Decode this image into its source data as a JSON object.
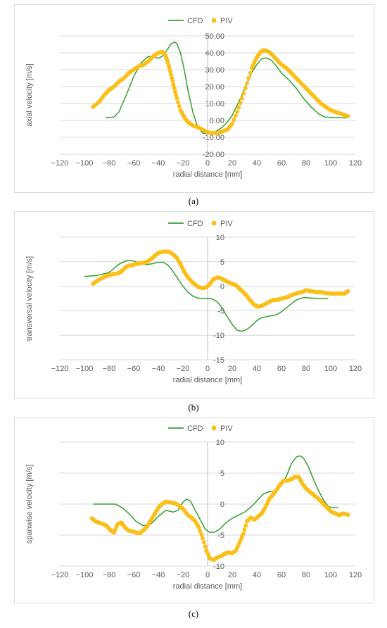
{
  "captions": [
    "(a)",
    "(b)",
    "(c)"
  ],
  "chart_data": [
    {
      "type": "line",
      "legend": [
        "CFD",
        "PIV"
      ],
      "legend_position": "top",
      "xlabel": "radial distance [mm]",
      "ylabel": "axial velocity [m/s]",
      "xlim": [
        -120,
        120
      ],
      "ylim": [
        -20,
        50
      ],
      "xticks": [
        "-120",
        "-100",
        "-80",
        "-60",
        "-40",
        "-20",
        "0",
        "20",
        "40",
        "60",
        "80",
        "100",
        "120"
      ],
      "yticks": [
        "-20.00",
        "-10.00",
        "0.00",
        "10.00",
        "20.00",
        "30.00",
        "40.00",
        "50.00"
      ],
      "grid": true,
      "colors": {
        "CFD": "#33a02c",
        "PIV": "#fbbf1a"
      },
      "series": [
        {
          "name": "CFD",
          "style": "line",
          "x": [
            -83,
            -76,
            -72,
            -66,
            -60,
            -54,
            -49,
            -45,
            -42,
            -39,
            -36,
            -33,
            -30,
            -27,
            -25,
            -22,
            -19,
            -16,
            -12,
            -8,
            -4,
            0,
            4,
            8,
            12,
            16,
            20,
            24,
            28,
            32,
            36,
            40,
            44,
            48,
            52,
            56,
            60,
            66,
            72,
            78,
            84,
            90,
            95,
            100,
            108,
            113
          ],
          "y": [
            1.5,
            2,
            5,
            15,
            26,
            34,
            37.5,
            38,
            37,
            37,
            38.5,
            41.5,
            45,
            46.5,
            45.5,
            40,
            30,
            18,
            5,
            -4,
            -7.5,
            -8,
            -7.5,
            -6,
            -4,
            -1,
            3,
            9,
            15,
            22,
            28.5,
            33,
            36.5,
            37,
            35.5,
            32,
            28,
            24,
            19,
            13,
            8,
            4,
            2,
            1.8,
            1.6,
            1.5
          ]
        },
        {
          "name": "PIV",
          "style": "dots",
          "x": [
            -93,
            -88,
            -84,
            -80,
            -76,
            -72,
            -68,
            -64,
            -60,
            -56,
            -52,
            -48,
            -44,
            -40,
            -37,
            -35,
            -33,
            -31,
            -29,
            -27,
            -25,
            -22,
            -19,
            -16,
            -12,
            -8,
            -4,
            0,
            4,
            8,
            12,
            16,
            20,
            24,
            28,
            32,
            36,
            39,
            42,
            44,
            46,
            48,
            50,
            53,
            56,
            60,
            64,
            68,
            72,
            76,
            80,
            84,
            88,
            92,
            96,
            100,
            104,
            108,
            112,
            114
          ],
          "y": [
            8,
            11,
            15,
            18,
            20,
            23,
            25,
            28,
            30,
            32,
            33,
            35,
            38,
            40,
            40.5,
            39.5,
            36,
            31,
            25,
            19,
            13,
            6,
            2,
            -1,
            -3,
            -4,
            -5.5,
            -7,
            -7.5,
            -7.5,
            -6.5,
            -5.5,
            -2,
            5,
            13,
            22,
            31,
            36,
            39.5,
            41,
            41.5,
            41,
            40.5,
            38.5,
            36,
            33,
            31,
            28,
            25,
            22,
            19,
            16,
            13,
            10,
            8,
            6,
            5,
            4,
            3,
            2.5
          ]
        }
      ]
    },
    {
      "type": "line",
      "legend": [
        "CFD",
        "PIV"
      ],
      "legend_position": "top",
      "xlabel": "radial distance [mm]",
      "ylabel": "transversal velocity [m/s]",
      "xlim": [
        -120,
        120
      ],
      "ylim": [
        -15,
        10
      ],
      "xticks": [
        "-120",
        "-100",
        "-80",
        "-60",
        "-40",
        "-20",
        "0",
        "20",
        "40",
        "60",
        "80",
        "100",
        "120"
      ],
      "yticks": [
        "-15",
        "-10",
        "-5",
        "0",
        "5",
        "10"
      ],
      "grid": true,
      "colors": {
        "CFD": "#33a02c",
        "PIV": "#fbbf1a"
      },
      "series": [
        {
          "name": "CFD",
          "style": "line",
          "x": [
            -100,
            -90,
            -80,
            -72,
            -66,
            -62,
            -58,
            -54,
            -50,
            -45,
            -40,
            -36,
            -32,
            -28,
            -24,
            -20,
            -16,
            -12,
            -8,
            -4,
            0,
            4,
            8,
            12,
            16,
            20,
            24,
            28,
            32,
            36,
            40,
            44,
            48,
            52,
            56,
            60,
            66,
            72,
            78,
            84,
            90,
            98
          ],
          "y": [
            2,
            2.2,
            2.8,
            4.5,
            5.2,
            5.3,
            5,
            4.7,
            4.4,
            4.6,
            4.9,
            4.9,
            4.3,
            3,
            1.5,
            0,
            -1.2,
            -2,
            -2.4,
            -2.5,
            -2.5,
            -2.6,
            -3.2,
            -4.5,
            -6.2,
            -7.8,
            -9,
            -9.2,
            -8.8,
            -8,
            -7,
            -6.4,
            -6.2,
            -6,
            -5.8,
            -5.2,
            -4,
            -2.8,
            -2.3,
            -2.4,
            -2.5,
            -2.5
          ]
        },
        {
          "name": "PIV",
          "style": "dots",
          "x": [
            -93,
            -89,
            -85,
            -81,
            -77,
            -73,
            -70,
            -67,
            -64,
            -61,
            -58,
            -55,
            -52,
            -49,
            -46,
            -43,
            -40,
            -37,
            -34,
            -31,
            -28,
            -25,
            -22,
            -19,
            -16,
            -13,
            -10,
            -7,
            -4,
            -1,
            2,
            5,
            8,
            11,
            14,
            17,
            20,
            23,
            26,
            29,
            32,
            35,
            38,
            41,
            44,
            47,
            50,
            53,
            56,
            59,
            62,
            65,
            68,
            71,
            74,
            77,
            80,
            84,
            88,
            92,
            96,
            100,
            104,
            108,
            111,
            114
          ],
          "y": [
            0.5,
            1.2,
            1.8,
            2.2,
            2.5,
            2.6,
            3,
            3.8,
            4.2,
            4.3,
            4.6,
            4.7,
            4.8,
            5,
            5.5,
            6.2,
            6.8,
            7,
            7.1,
            7,
            6.5,
            5.8,
            4.5,
            3,
            1.8,
            1,
            0.3,
            -0.2,
            -0.4,
            -0.2,
            0.5,
            1.5,
            1.8,
            1.6,
            1.2,
            0.8,
            0.5,
            0.2,
            -0.5,
            -1.2,
            -2,
            -3,
            -3.8,
            -4.2,
            -4,
            -3.6,
            -3.2,
            -2.8,
            -2.8,
            -2.6,
            -2.4,
            -2.2,
            -1.8,
            -1.6,
            -1.3,
            -1.2,
            -0.8,
            -1,
            -1.2,
            -1.2,
            -1.4,
            -1.5,
            -1.5,
            -1.5,
            -1.5,
            -1
          ]
        }
      ]
    },
    {
      "type": "line",
      "legend": [
        "CFD",
        "PIV"
      ],
      "legend_position": "top",
      "xlabel": "radial distance [mm]",
      "ylabel": "spanwise velocity [m/s]",
      "xlim": [
        -120,
        120
      ],
      "ylim": [
        -10,
        10
      ],
      "xticks": [
        "-120",
        "-100",
        "-80",
        "-60",
        "-40",
        "-20",
        "0",
        "20",
        "40",
        "60",
        "80",
        "100",
        "120"
      ],
      "yticks": [
        "-10",
        "-5",
        "0",
        "5",
        "10"
      ],
      "grid": true,
      "colors": {
        "CFD": "#33a02c",
        "PIV": "#fbbf1a"
      },
      "series": [
        {
          "name": "CFD",
          "style": "line",
          "x": [
            -93,
            -84,
            -75,
            -70,
            -64,
            -58,
            -52,
            -46,
            -40,
            -34,
            -28,
            -24,
            -20,
            -17,
            -14,
            -10,
            -6,
            -2,
            2,
            6,
            10,
            15,
            20,
            25,
            30,
            35,
            40,
            45,
            50,
            55,
            60,
            64,
            68,
            72,
            75,
            78,
            82,
            86,
            90,
            94,
            98,
            102,
            106
          ],
          "y": [
            0,
            0,
            0,
            -0.5,
            -1.5,
            -2.8,
            -3.5,
            -3.2,
            -2,
            -1,
            -1.3,
            -1,
            0.3,
            0.8,
            0.5,
            -1,
            -2.5,
            -4,
            -4.6,
            -4.5,
            -4,
            -3,
            -2.3,
            -1.8,
            -1.3,
            -0.5,
            0.5,
            1.6,
            2,
            2,
            3,
            4.5,
            6.5,
            7.6,
            7.8,
            7.4,
            6,
            4,
            2.2,
            0.7,
            -0.4,
            -0.6,
            -0.6
          ]
        },
        {
          "name": "PIV",
          "style": "dots",
          "x": [
            -94,
            -91,
            -88,
            -85,
            -82,
            -79,
            -76,
            -73,
            -70,
            -67,
            -64,
            -61,
            -58,
            -55,
            -52,
            -49,
            -46,
            -43,
            -40,
            -37,
            -34,
            -31,
            -28,
            -25,
            -22,
            -19,
            -16,
            -13,
            -10,
            -7,
            -4,
            -1,
            2,
            5,
            8,
            11,
            14,
            17,
            20,
            23,
            26,
            29,
            32,
            35,
            38,
            41,
            44,
            47,
            50,
            53,
            56,
            59,
            62,
            65,
            68,
            71,
            74,
            77,
            80,
            83,
            86,
            89,
            92,
            95,
            98,
            101,
            104,
            107,
            110,
            114
          ],
          "y": [
            -2.3,
            -2.8,
            -3,
            -3.2,
            -3.5,
            -4.2,
            -4.6,
            -3.2,
            -3,
            -3.8,
            -4.3,
            -4.4,
            -4.6,
            -4.7,
            -4.2,
            -3.6,
            -2.6,
            -1.6,
            -0.6,
            0,
            0.4,
            0.3,
            0.2,
            0,
            -0.4,
            -1,
            -1.8,
            -2.2,
            -2.8,
            -3.8,
            -5.5,
            -7.5,
            -8.8,
            -9,
            -8.6,
            -8.4,
            -8,
            -7.8,
            -7.9,
            -7.5,
            -6.2,
            -4.8,
            -2.8,
            -2.2,
            -2.5,
            -2,
            -1.5,
            -0.5,
            0.8,
            1.5,
            2.3,
            3.2,
            3.8,
            3.8,
            4,
            4.4,
            4.4,
            3.3,
            2.5,
            2,
            1.5,
            1,
            0.5,
            -0.2,
            -0.8,
            -1.3,
            -1.5,
            -1.8,
            -1.5,
            -1.7
          ]
        }
      ]
    }
  ]
}
